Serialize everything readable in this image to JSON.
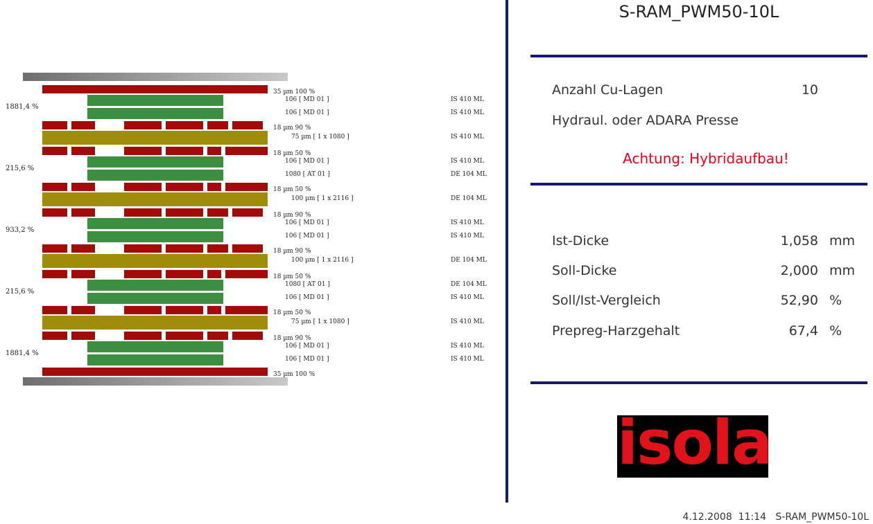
{
  "title": "S-RAM_PWM50-10L",
  "info": {
    "layers_label": "Anzahl Cu-Lagen",
    "layers_value": "10",
    "press_label": "Hydraul. oder ADARA Presse",
    "warning": "Achtung: Hybridaufbau!"
  },
  "thickness": [
    {
      "label": "Ist-Dicke",
      "value": "1,058",
      "unit": "mm"
    },
    {
      "label": "Soll-Dicke",
      "value": "2,000",
      "unit": "mm"
    },
    {
      "label": "Soll/Ist-Vergleich",
      "value": "52,90",
      "unit": "%"
    },
    {
      "label": "Prepreg-Harzgehalt",
      "value": "67,4",
      "unit": "%"
    }
  ],
  "logo": {
    "text": "isola"
  },
  "footer": {
    "date": "4.12.2008",
    "time": "11:14",
    "name": "S-RAM_PWM50-10L"
  },
  "stack": {
    "layers": [
      {
        "kind": "plate"
      },
      {
        "kind": "cu",
        "label": "35 µm 100 %",
        "coverage": 100
      },
      {
        "kind": "prepreg",
        "label": "106  [ MD 01 ]",
        "material": "IS 410 ML"
      },
      {
        "kind": "prepreg",
        "label": "106  [ MD 01 ]",
        "material": "IS 410 ML"
      },
      {
        "kind": "cu",
        "label": "18 µm 90 %",
        "coverage": 90
      },
      {
        "kind": "core",
        "label": "75 µm    [ 1 x  1080 ]",
        "material": "IS 410 ML"
      },
      {
        "kind": "cu",
        "label": "18 µm 50 %",
        "coverage": 50
      },
      {
        "kind": "prepreg",
        "label": "106  [ MD 01 ]",
        "material": "IS 410 ML"
      },
      {
        "kind": "prepreg",
        "label": "1080 [ AT 01 ]",
        "material": "DE 104 ML"
      },
      {
        "kind": "cu",
        "label": "18 µm 50 %",
        "coverage": 50
      },
      {
        "kind": "core",
        "label": "100 µm  [ 1 x  2116 ]",
        "material": "DE 104 ML"
      },
      {
        "kind": "cu",
        "label": "18 µm 90 %",
        "coverage": 90
      },
      {
        "kind": "prepreg",
        "label": "106  [ MD 01 ]",
        "material": "IS 410 ML"
      },
      {
        "kind": "prepreg",
        "label": "106  [ MD 01 ]",
        "material": "IS 410 ML"
      },
      {
        "kind": "cu",
        "label": "18 µm 90 %",
        "coverage": 90
      },
      {
        "kind": "core",
        "label": "100 µm  [ 1 x  2116 ]",
        "material": "DE 104 ML"
      },
      {
        "kind": "cu",
        "label": "18 µm 50 %",
        "coverage": 50
      },
      {
        "kind": "prepreg",
        "label": "1080 [ AT 01 ]",
        "material": "DE 104 ML"
      },
      {
        "kind": "prepreg",
        "label": "106  [ MD 01 ]",
        "material": "IS 410 ML"
      },
      {
        "kind": "cu",
        "label": "18 µm 50 %",
        "coverage": 50
      },
      {
        "kind": "core",
        "label": "75 µm    [ 1 x  1080 ]",
        "material": "IS 410 ML"
      },
      {
        "kind": "cu",
        "label": "18 µm 90 %",
        "coverage": 90
      },
      {
        "kind": "prepreg",
        "label": "106  [ MD 01 ]",
        "material": "IS 410 ML"
      },
      {
        "kind": "prepreg",
        "label": "106  [ MD 01 ]",
        "material": "IS 410 ML"
      },
      {
        "kind": "cu",
        "label": "35 µm 100 %",
        "coverage": 100
      },
      {
        "kind": "plate"
      }
    ],
    "percentages": [
      "1881,4 %",
      "215,6 %",
      "933,2 %",
      "215,6 %",
      "1881,4 %"
    ]
  }
}
